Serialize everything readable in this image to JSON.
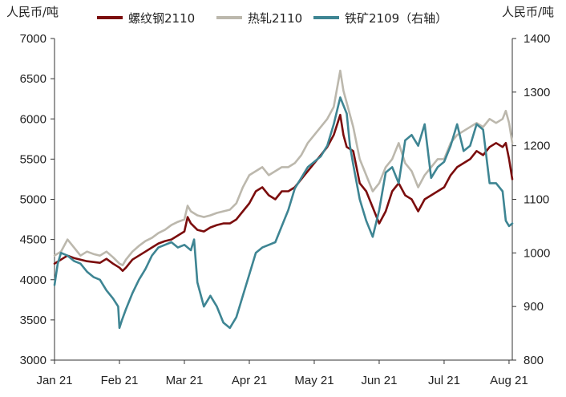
{
  "chart_data": {
    "type": "line",
    "title": "",
    "y_left_label": "人民币/吨",
    "y_right_label": "人民币/吨",
    "ylim_left": [
      3000,
      7000
    ],
    "ylim_right": [
      800,
      1400
    ],
    "y_left_ticks": [
      3000,
      3500,
      4000,
      4500,
      5000,
      5500,
      6000,
      6500,
      7000
    ],
    "y_right_ticks": [
      800,
      900,
      1000,
      1100,
      1200,
      1300,
      1400
    ],
    "x_ticks": [
      "Jan 21",
      "Feb 21",
      "Mar 21",
      "Apr 21",
      "May 21",
      "Jun 21",
      "Jul 21",
      "Aug 21"
    ],
    "xlim": [
      0,
      7.05
    ],
    "series": [
      {
        "name": "螺纹钢2110",
        "axis": "left",
        "color": "#7b0d0d",
        "x": [
          0.0,
          0.1,
          0.2,
          0.3,
          0.4,
          0.5,
          0.6,
          0.7,
          0.8,
          0.9,
          1.0,
          1.05,
          1.1,
          1.2,
          1.3,
          1.4,
          1.5,
          1.6,
          1.7,
          1.8,
          1.9,
          2.0,
          2.05,
          2.1,
          2.2,
          2.3,
          2.4,
          2.5,
          2.6,
          2.7,
          2.8,
          2.9,
          3.0,
          3.1,
          3.2,
          3.3,
          3.4,
          3.5,
          3.6,
          3.7,
          3.8,
          3.9,
          4.0,
          4.1,
          4.2,
          4.3,
          4.4,
          4.45,
          4.5,
          4.6,
          4.7,
          4.8,
          4.9,
          5.0,
          5.1,
          5.2,
          5.3,
          5.4,
          5.5,
          5.6,
          5.7,
          5.8,
          5.9,
          6.0,
          6.1,
          6.2,
          6.3,
          6.4,
          6.5,
          6.6,
          6.7,
          6.8,
          6.9,
          6.95,
          7.0,
          7.05
        ],
        "values": [
          4200,
          4250,
          4300,
          4270,
          4250,
          4230,
          4220,
          4210,
          4260,
          4200,
          4150,
          4110,
          4150,
          4250,
          4300,
          4350,
          4400,
          4450,
          4480,
          4500,
          4550,
          4600,
          4780,
          4700,
          4620,
          4600,
          4650,
          4680,
          4700,
          4700,
          4750,
          4850,
          4950,
          5100,
          5150,
          5050,
          5000,
          5100,
          5100,
          5150,
          5250,
          5350,
          5450,
          5550,
          5650,
          5800,
          6050,
          5800,
          5650,
          5600,
          5200,
          5100,
          4900,
          4700,
          4850,
          5100,
          5200,
          5050,
          5000,
          4850,
          5000,
          5050,
          5100,
          5150,
          5300,
          5400,
          5450,
          5500,
          5600,
          5550,
          5650,
          5700,
          5650,
          5700,
          5500,
          5250
        ]
      },
      {
        "name": "热轧2110",
        "axis": "left",
        "color": "#bcb8ad",
        "x": [
          0.0,
          0.1,
          0.2,
          0.3,
          0.4,
          0.5,
          0.6,
          0.7,
          0.8,
          0.9,
          1.0,
          1.05,
          1.1,
          1.2,
          1.3,
          1.4,
          1.5,
          1.6,
          1.7,
          1.8,
          1.9,
          2.0,
          2.05,
          2.1,
          2.2,
          2.3,
          2.4,
          2.5,
          2.6,
          2.7,
          2.8,
          2.9,
          3.0,
          3.1,
          3.2,
          3.3,
          3.4,
          3.5,
          3.6,
          3.7,
          3.8,
          3.9,
          4.0,
          4.1,
          4.2,
          4.3,
          4.4,
          4.45,
          4.5,
          4.6,
          4.7,
          4.8,
          4.9,
          5.0,
          5.1,
          5.2,
          5.3,
          5.4,
          5.5,
          5.6,
          5.7,
          5.8,
          5.9,
          6.0,
          6.1,
          6.2,
          6.3,
          6.4,
          6.5,
          6.6,
          6.7,
          6.8,
          6.9,
          6.95,
          7.0,
          7.05
        ],
        "values": [
          4300,
          4350,
          4500,
          4400,
          4300,
          4350,
          4320,
          4300,
          4350,
          4280,
          4200,
          4180,
          4250,
          4350,
          4420,
          4480,
          4520,
          4580,
          4620,
          4680,
          4720,
          4750,
          4920,
          4850,
          4800,
          4780,
          4800,
          4830,
          4850,
          4870,
          4950,
          5150,
          5300,
          5350,
          5400,
          5300,
          5350,
          5400,
          5400,
          5450,
          5550,
          5700,
          5800,
          5900,
          6000,
          6150,
          6600,
          6350,
          6200,
          5900,
          5500,
          5300,
          5100,
          5200,
          5400,
          5500,
          5700,
          5450,
          5350,
          5150,
          5300,
          5400,
          5500,
          5500,
          5700,
          5800,
          5850,
          5900,
          5950,
          5900,
          6000,
          5950,
          6000,
          6100,
          5950,
          5700
        ]
      },
      {
        "name": "铁矿2109（右轴）",
        "axis": "right",
        "color": "#3e8593",
        "x": [
          0.0,
          0.05,
          0.1,
          0.2,
          0.3,
          0.4,
          0.5,
          0.6,
          0.7,
          0.8,
          0.9,
          0.98,
          1.0,
          1.04,
          1.1,
          1.2,
          1.3,
          1.4,
          1.5,
          1.6,
          1.7,
          1.8,
          1.9,
          2.0,
          2.1,
          2.15,
          2.2,
          2.3,
          2.4,
          2.5,
          2.6,
          2.7,
          2.8,
          2.9,
          3.0,
          3.1,
          3.2,
          3.3,
          3.4,
          3.5,
          3.6,
          3.7,
          3.8,
          3.9,
          4.0,
          4.1,
          4.2,
          4.3,
          4.4,
          4.5,
          4.55,
          4.6,
          4.7,
          4.8,
          4.9,
          5.0,
          5.1,
          5.2,
          5.3,
          5.4,
          5.5,
          5.6,
          5.7,
          5.8,
          5.9,
          6.0,
          6.1,
          6.2,
          6.3,
          6.4,
          6.5,
          6.6,
          6.7,
          6.8,
          6.9,
          6.95,
          7.0,
          7.05
        ],
        "values": [
          940,
          980,
          1000,
          995,
          985,
          980,
          965,
          955,
          950,
          930,
          915,
          900,
          860,
          875,
          895,
          925,
          950,
          970,
          995,
          1010,
          1015,
          1020,
          1010,
          1015,
          1005,
          1025,
          945,
          900,
          920,
          900,
          870,
          860,
          880,
          920,
          960,
          1000,
          1010,
          1015,
          1020,
          1050,
          1080,
          1120,
          1140,
          1160,
          1170,
          1180,
          1200,
          1240,
          1290,
          1260,
          1200,
          1165,
          1100,
          1060,
          1030,
          1080,
          1150,
          1160,
          1130,
          1210,
          1220,
          1200,
          1240,
          1140,
          1160,
          1170,
          1200,
          1240,
          1190,
          1200,
          1240,
          1230,
          1130,
          1130,
          1115,
          1060,
          1050,
          1055
        ]
      }
    ]
  }
}
